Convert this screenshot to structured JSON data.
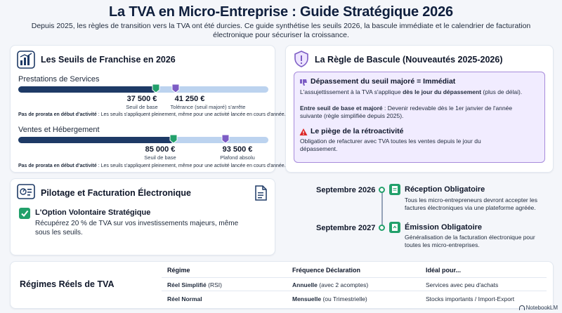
{
  "header": {
    "title": "La TVA en Micro-Entreprise : Guide Stratégique 2026",
    "subtitle": "Depuis 2025, les règles de transition vers la TVA ont été durcies. Ce guide synthétise les seuils 2026, la bascule immédiate et le calendrier de facturation électronique pour sécuriser la croissance."
  },
  "seuils": {
    "title": "Les Seuils de Franchise en 2026",
    "services": {
      "label": "Prestations de Services",
      "base_fraction": 0.55,
      "majore_fraction": 0.63,
      "base_value": "37 500 €",
      "base_caption": "Seuil de base",
      "majore_value": "41 250 €",
      "majore_caption": "Tolérance (seuil majoré) s'arrête",
      "note_bold": "Pas de prorata en début d'activité",
      "note": " : Les seuils s'appliquent pleinement, même pour une activité lancée en cours d'année."
    },
    "ventes": {
      "label": "Ventes et Hébergement",
      "base_fraction": 0.62,
      "majore_fraction": 0.83,
      "base_value": "85 000 €",
      "base_caption": "Seuil de base",
      "majore_value": "93 500 €",
      "majore_caption": "Plafond absolu",
      "note_bold": "Pas de prorata en début d'activité",
      "note": " : Les seuils s'appliquent pleinement, même pour une activité lancée en cours d'année."
    }
  },
  "bascule": {
    "title": "La Règle de Bascule (Nouveautés 2025-2026)",
    "item1_title": "Dépassement du seuil majoré = Immédiat",
    "item1_text_a": "L'assujettissement à la TVA s'applique ",
    "item1_text_b": "dès le jour du dépassement",
    "item1_text_c": " (plus de délai).",
    "item2_text_bold": "Entre seuil de base et majoré",
    "item2_text": " : Devenir redevable dès le 1er janvier de l'année suivante (règle simplifiée depuis 2025).",
    "item3_title": "Le piège de la rétroactivité",
    "item3_text": "Obligation de refacturer avec TVA toutes les ventes depuis le jour du dépassement."
  },
  "pilotage": {
    "title": "Pilotage et Facturation Électronique",
    "option_title": "L'Option Volontaire Stratégique",
    "option_text": "Récupérez 20 % de TVA sur vos investissements majeurs, même sous les seuils.",
    "timeline": [
      {
        "date": "Septembre 2026",
        "title": "Réception Obligatoire",
        "text": "Tous les micro-entrepreneurs devront accepter les factures électroniques via une plateforme agréée."
      },
      {
        "date": "Septembre 2027",
        "title": "Émission Obligatoire",
        "text": "Généralisation de la facturation électronique pour toutes les micro-entreprises."
      }
    ]
  },
  "regimes": {
    "title": "Régimes Réels de TVA",
    "headers": [
      "Régime",
      "Fréquence Déclaration",
      "Idéal pour..."
    ],
    "rows": [
      {
        "regime": "Réel Simplifié",
        "regime_note": " (RSI)",
        "freq": "Annuelle",
        "freq_note": " (avec 2 acomptes)",
        "ideal": "Services avec peu d'achats"
      },
      {
        "regime": "Réel Normal",
        "regime_note": "",
        "freq": "Mensuelle",
        "freq_note": " (ou Trimestrielle)",
        "ideal": "Stocks importants / Import-Export"
      }
    ]
  },
  "branding": {
    "logo": "NotebookLM"
  },
  "colors": {
    "navy": "#1e3a66",
    "light_blue": "#bcd3ef",
    "green": "#22a06b",
    "purple": "#7c5cc4",
    "purple_bg": "#f1ecff"
  }
}
